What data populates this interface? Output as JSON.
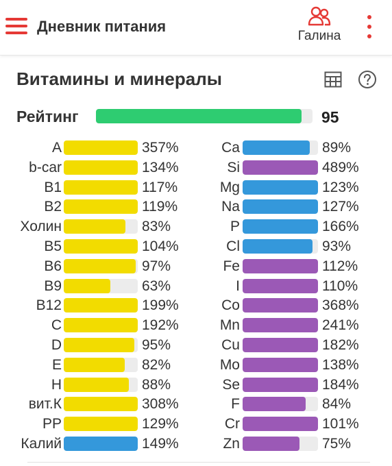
{
  "app": {
    "title": "Дневник питания"
  },
  "user": {
    "name": "Галина"
  },
  "card": {
    "title": "Витамины и минералы"
  },
  "rating": {
    "label": "Рейтинг",
    "value": "95",
    "fraction": 0.95
  },
  "colors": {
    "accent": "#e53935",
    "rating": "#2ecc71",
    "vitamin": "#f2dc00",
    "blue": "#3498db",
    "purple": "#9b59b6",
    "track": "#ececec"
  },
  "icons": {
    "menu": "hamburger-menu-icon",
    "user": "user-group-icon",
    "more": "more-vertical-icon",
    "table": "table-icon",
    "help": "help-circle-icon"
  },
  "left_items": [
    {
      "name": "A",
      "pct": "357%",
      "value": 357,
      "color": "#f2dc00"
    },
    {
      "name": "b-car",
      "pct": "134%",
      "value": 134,
      "color": "#f2dc00"
    },
    {
      "name": "B1",
      "pct": "117%",
      "value": 117,
      "color": "#f2dc00"
    },
    {
      "name": "B2",
      "pct": "119%",
      "value": 119,
      "color": "#f2dc00"
    },
    {
      "name": "Холин",
      "pct": "83%",
      "value": 83,
      "color": "#f2dc00"
    },
    {
      "name": "B5",
      "pct": "104%",
      "value": 104,
      "color": "#f2dc00"
    },
    {
      "name": "B6",
      "pct": "97%",
      "value": 97,
      "color": "#f2dc00"
    },
    {
      "name": "B9",
      "pct": "63%",
      "value": 63,
      "color": "#f2dc00"
    },
    {
      "name": "B12",
      "pct": "199%",
      "value": 199,
      "color": "#f2dc00"
    },
    {
      "name": "C",
      "pct": "192%",
      "value": 192,
      "color": "#f2dc00"
    },
    {
      "name": "D",
      "pct": "95%",
      "value": 95,
      "color": "#f2dc00"
    },
    {
      "name": "E",
      "pct": "82%",
      "value": 82,
      "color": "#f2dc00"
    },
    {
      "name": "H",
      "pct": "88%",
      "value": 88,
      "color": "#f2dc00"
    },
    {
      "name": "вит.К",
      "pct": "308%",
      "value": 308,
      "color": "#f2dc00"
    },
    {
      "name": "PP",
      "pct": "129%",
      "value": 129,
      "color": "#f2dc00"
    },
    {
      "name": "Калий",
      "pct": "149%",
      "value": 149,
      "color": "#3498db"
    }
  ],
  "right_items": [
    {
      "name": "Ca",
      "pct": "89%",
      "value": 89,
      "color": "#3498db"
    },
    {
      "name": "Si",
      "pct": "489%",
      "value": 489,
      "color": "#9b59b6"
    },
    {
      "name": "Mg",
      "pct": "123%",
      "value": 123,
      "color": "#3498db"
    },
    {
      "name": "Na",
      "pct": "127%",
      "value": 127,
      "color": "#3498db"
    },
    {
      "name": "P",
      "pct": "166%",
      "value": 166,
      "color": "#3498db"
    },
    {
      "name": "Cl",
      "pct": "93%",
      "value": 93,
      "color": "#3498db"
    },
    {
      "name": "Fe",
      "pct": "112%",
      "value": 112,
      "color": "#9b59b6"
    },
    {
      "name": "I",
      "pct": "110%",
      "value": 110,
      "color": "#9b59b6"
    },
    {
      "name": "Co",
      "pct": "368%",
      "value": 368,
      "color": "#9b59b6"
    },
    {
      "name": "Mn",
      "pct": "241%",
      "value": 241,
      "color": "#9b59b6"
    },
    {
      "name": "Cu",
      "pct": "182%",
      "value": 182,
      "color": "#9b59b6"
    },
    {
      "name": "Mo",
      "pct": "138%",
      "value": 138,
      "color": "#9b59b6"
    },
    {
      "name": "Se",
      "pct": "184%",
      "value": 184,
      "color": "#9b59b6"
    },
    {
      "name": "F",
      "pct": "84%",
      "value": 84,
      "color": "#9b59b6"
    },
    {
      "name": "Cr",
      "pct": "101%",
      "value": 101,
      "color": "#9b59b6"
    },
    {
      "name": "Zn",
      "pct": "75%",
      "value": 75,
      "color": "#9b59b6"
    }
  ]
}
